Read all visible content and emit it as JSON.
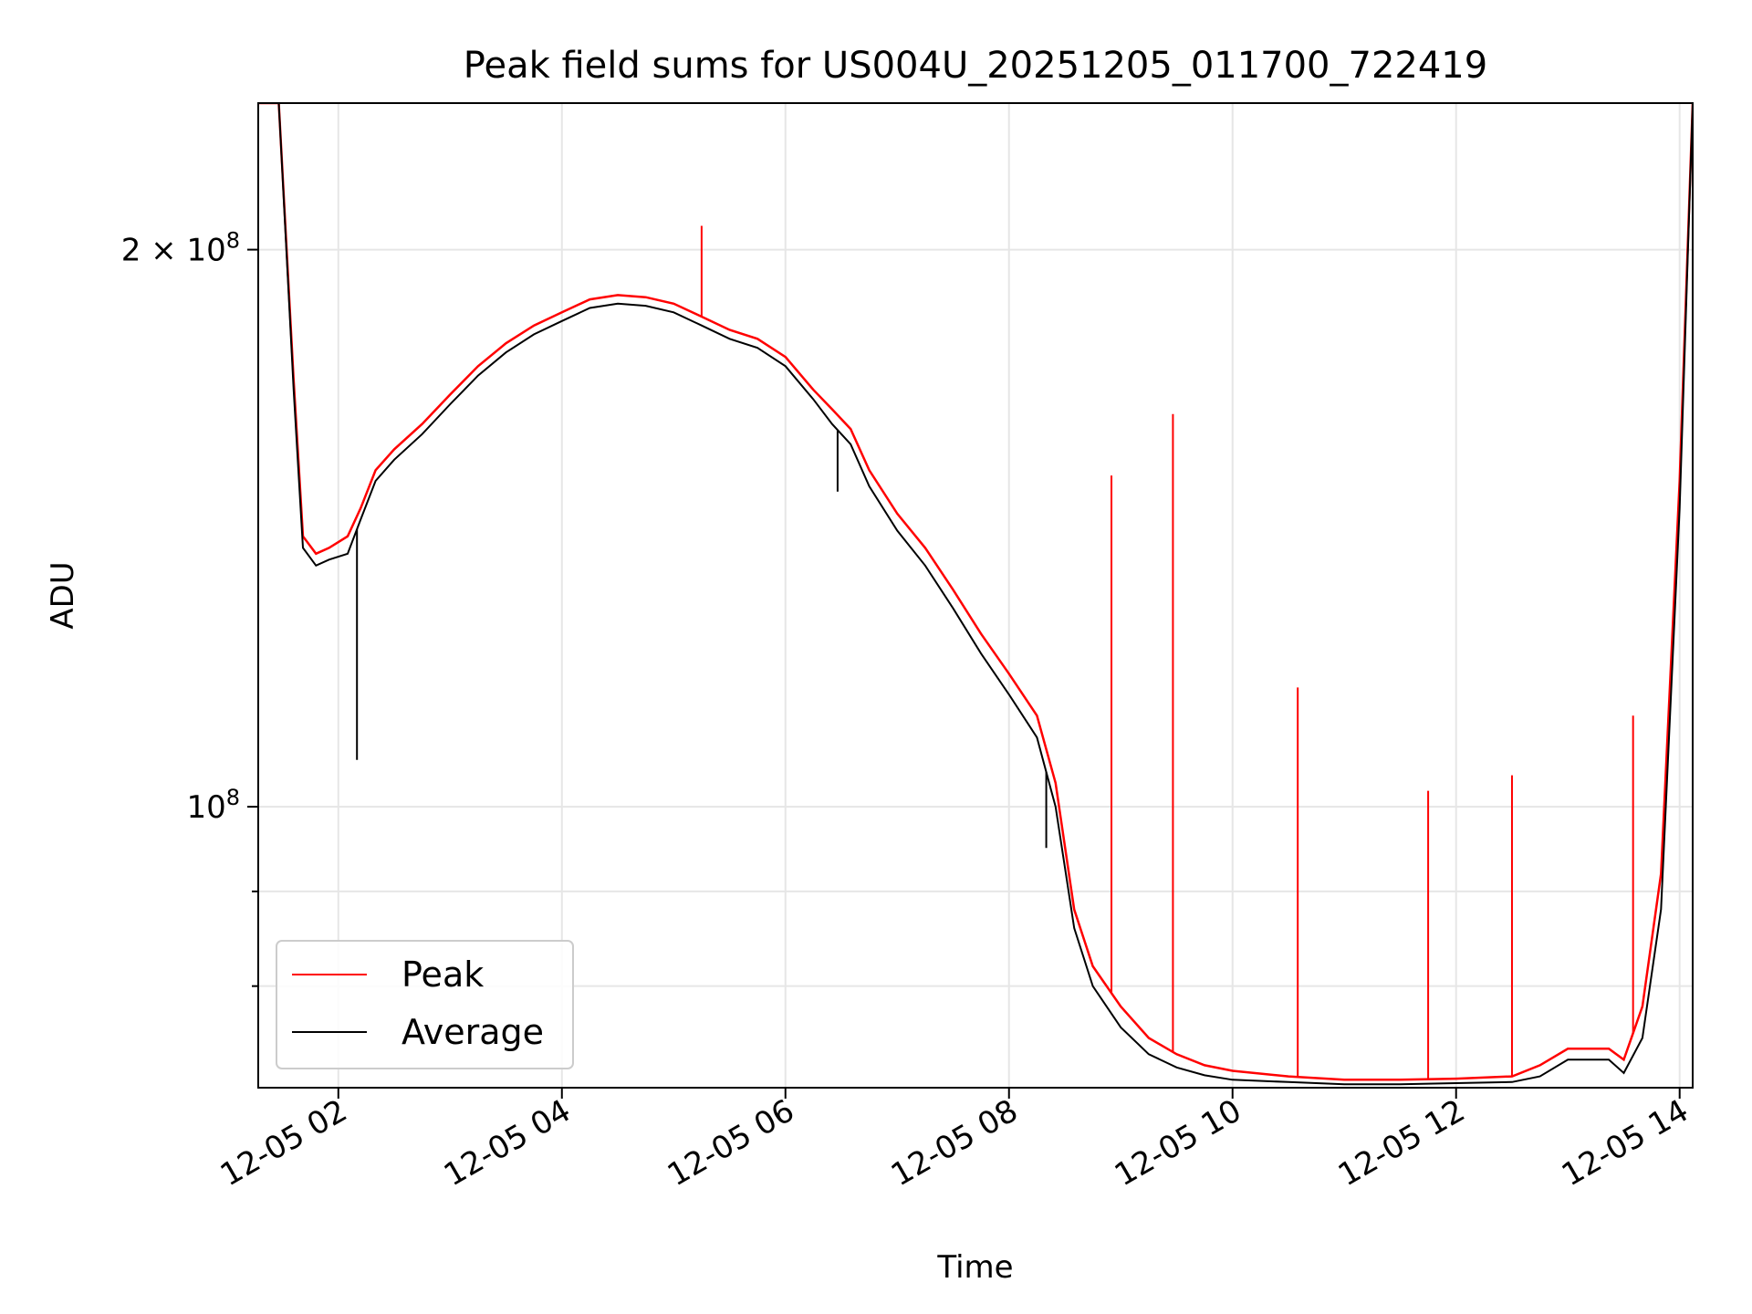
{
  "chart_data": {
    "type": "line",
    "title": "Peak field sums for US004U_20251205_011700_722419",
    "xlabel": "Time",
    "ylabel": "ADU",
    "y_scale": "log",
    "grid": true,
    "legend_position": "lower-left",
    "xlim": [
      "2025-12-05 01:17",
      "2025-12-05 14:07"
    ],
    "ylim": [
      70500000,
      240000000
    ],
    "x_ticks": [
      {
        "value": "2025-12-05 02:00",
        "label": "12-05 02"
      },
      {
        "value": "2025-12-05 04:00",
        "label": "12-05 04"
      },
      {
        "value": "2025-12-05 06:00",
        "label": "12-05 06"
      },
      {
        "value": "2025-12-05 08:00",
        "label": "12-05 08"
      },
      {
        "value": "2025-12-05 10:00",
        "label": "12-05 10"
      },
      {
        "value": "2025-12-05 12:00",
        "label": "12-05 12"
      },
      {
        "value": "2025-12-05 14:00",
        "label": "12-05 14"
      }
    ],
    "y_ticks_major": [
      {
        "value": 100000000,
        "label": "10",
        "exp": "8",
        "prefix": ""
      },
      {
        "value": 200000000,
        "label": "10",
        "exp": "8",
        "prefix": "2 × "
      }
    ],
    "y_ticks_minor": [
      60000000,
      70000000,
      80000000,
      90000000
    ],
    "colors": {
      "peak": "#ff0000",
      "average": "#000000",
      "grid": "#e6e6e6"
    },
    "series": [
      {
        "name": "Peak",
        "color": "#ff0000",
        "x": [
          "2025-12-05 01:17",
          "2025-12-05 01:28",
          "2025-12-05 01:36",
          "2025-12-05 01:41",
          "2025-12-05 01:48",
          "2025-12-05 01:55",
          "2025-12-05 02:05",
          "2025-12-05 02:12",
          "2025-12-05 02:20",
          "2025-12-05 02:30",
          "2025-12-05 02:45",
          "2025-12-05 03:00",
          "2025-12-05 03:15",
          "2025-12-05 03:30",
          "2025-12-05 03:45",
          "2025-12-05 04:00",
          "2025-12-05 04:15",
          "2025-12-05 04:30",
          "2025-12-05 04:45",
          "2025-12-05 05:00",
          "2025-12-05 05:15",
          "2025-12-05 05:30",
          "2025-12-05 05:45",
          "2025-12-05 06:00",
          "2025-12-05 06:15",
          "2025-12-05 06:25",
          "2025-12-05 06:35",
          "2025-12-05 06:45",
          "2025-12-05 07:00",
          "2025-12-05 07:15",
          "2025-12-05 07:30",
          "2025-12-05 07:45",
          "2025-12-05 08:00",
          "2025-12-05 08:15",
          "2025-12-05 08:25",
          "2025-12-05 08:35",
          "2025-12-05 08:45",
          "2025-12-05 09:00",
          "2025-12-05 09:15",
          "2025-12-05 09:30",
          "2025-12-05 09:45",
          "2025-12-05 10:00",
          "2025-12-05 10:30",
          "2025-12-05 11:00",
          "2025-12-05 11:30",
          "2025-12-05 12:00",
          "2025-12-05 12:30",
          "2025-12-05 12:45",
          "2025-12-05 13:00",
          "2025-12-05 13:15",
          "2025-12-05 13:22",
          "2025-12-05 13:30",
          "2025-12-05 13:40",
          "2025-12-05 13:50",
          "2025-12-05 14:00",
          "2025-12-05 14:07"
        ],
        "y": [
          240000000,
          240000000,
          170000000,
          140000000,
          137000000,
          138000000,
          140000000,
          145000000,
          152000000,
          156000000,
          161000000,
          167000000,
          173000000,
          178000000,
          182000000,
          185000000,
          188000000,
          189000000,
          188500000,
          187000000,
          184000000,
          181000000,
          179000000,
          175000000,
          168000000,
          164000000,
          160000000,
          152000000,
          144000000,
          138000000,
          131000000,
          124000000,
          118000000,
          112000000,
          103000000,
          88000000,
          82000000,
          78000000,
          75000000,
          73500000,
          72500000,
          72000000,
          71500000,
          71200000,
          71200000,
          71300000,
          71500000,
          72500000,
          74000000,
          74000000,
          74000000,
          73000000,
          78000000,
          92000000,
          150000000,
          240000000
        ]
      },
      {
        "name": "Average",
        "color": "#000000",
        "x": [
          "2025-12-05 01:17",
          "2025-12-05 01:28",
          "2025-12-05 01:36",
          "2025-12-05 01:41",
          "2025-12-05 01:48",
          "2025-12-05 01:55",
          "2025-12-05 02:05",
          "2025-12-05 02:12",
          "2025-12-05 02:20",
          "2025-12-05 02:30",
          "2025-12-05 02:45",
          "2025-12-05 03:00",
          "2025-12-05 03:15",
          "2025-12-05 03:30",
          "2025-12-05 03:45",
          "2025-12-05 04:00",
          "2025-12-05 04:15",
          "2025-12-05 04:30",
          "2025-12-05 04:45",
          "2025-12-05 05:00",
          "2025-12-05 05:15",
          "2025-12-05 05:30",
          "2025-12-05 05:45",
          "2025-12-05 06:00",
          "2025-12-05 06:15",
          "2025-12-05 06:25",
          "2025-12-05 06:35",
          "2025-12-05 06:45",
          "2025-12-05 07:00",
          "2025-12-05 07:15",
          "2025-12-05 07:30",
          "2025-12-05 07:45",
          "2025-12-05 08:00",
          "2025-12-05 08:15",
          "2025-12-05 08:25",
          "2025-12-05 08:35",
          "2025-12-05 08:45",
          "2025-12-05 09:00",
          "2025-12-05 09:15",
          "2025-12-05 09:30",
          "2025-12-05 09:45",
          "2025-12-05 10:00",
          "2025-12-05 10:30",
          "2025-12-05 11:00",
          "2025-12-05 11:30",
          "2025-12-05 12:00",
          "2025-12-05 12:30",
          "2025-12-05 12:45",
          "2025-12-05 13:00",
          "2025-12-05 13:15",
          "2025-12-05 13:22",
          "2025-12-05 13:30",
          "2025-12-05 13:40",
          "2025-12-05 13:50",
          "2025-12-05 14:00",
          "2025-12-05 14:07"
        ],
        "y": [
          240000000,
          240000000,
          168000000,
          138000000,
          135000000,
          136000000,
          137000000,
          143000000,
          150000000,
          154000000,
          159000000,
          165000000,
          171000000,
          176000000,
          180000000,
          183000000,
          186000000,
          187000000,
          186500000,
          185000000,
          182000000,
          179000000,
          177000000,
          173000000,
          166000000,
          161000000,
          157000000,
          149000000,
          141000000,
          135000000,
          128000000,
          121000000,
          115000000,
          109000000,
          100000000,
          86000000,
          80000000,
          76000000,
          73500000,
          72300000,
          71600000,
          71200000,
          71000000,
          70800000,
          70800000,
          70900000,
          71000000,
          71500000,
          73000000,
          73000000,
          73000000,
          71800000,
          75000000,
          88000000,
          145000000,
          240000000
        ]
      }
    ],
    "spikes": [
      {
        "series": "Peak",
        "x": "2025-12-05 05:15",
        "y": 206000000
      },
      {
        "series": "Peak",
        "x": "2025-12-05 08:55",
        "y": 151000000
      },
      {
        "series": "Peak",
        "x": "2025-12-05 09:28",
        "y": 163000000
      },
      {
        "series": "Peak",
        "x": "2025-12-05 10:35",
        "y": 116000000
      },
      {
        "series": "Peak",
        "x": "2025-12-05 11:45",
        "y": 102000000
      },
      {
        "series": "Peak",
        "x": "2025-12-05 12:30",
        "y": 104000000
      },
      {
        "series": "Peak",
        "x": "2025-12-05 13:35",
        "y": 112000000
      }
    ],
    "dips": [
      {
        "series": "Average",
        "x": "2025-12-05 02:10",
        "y": 106000000
      },
      {
        "series": "Average",
        "x": "2025-12-05 06:28",
        "y": 148000000
      },
      {
        "series": "Average",
        "x": "2025-12-05 08:20",
        "y": 95000000
      }
    ]
  }
}
